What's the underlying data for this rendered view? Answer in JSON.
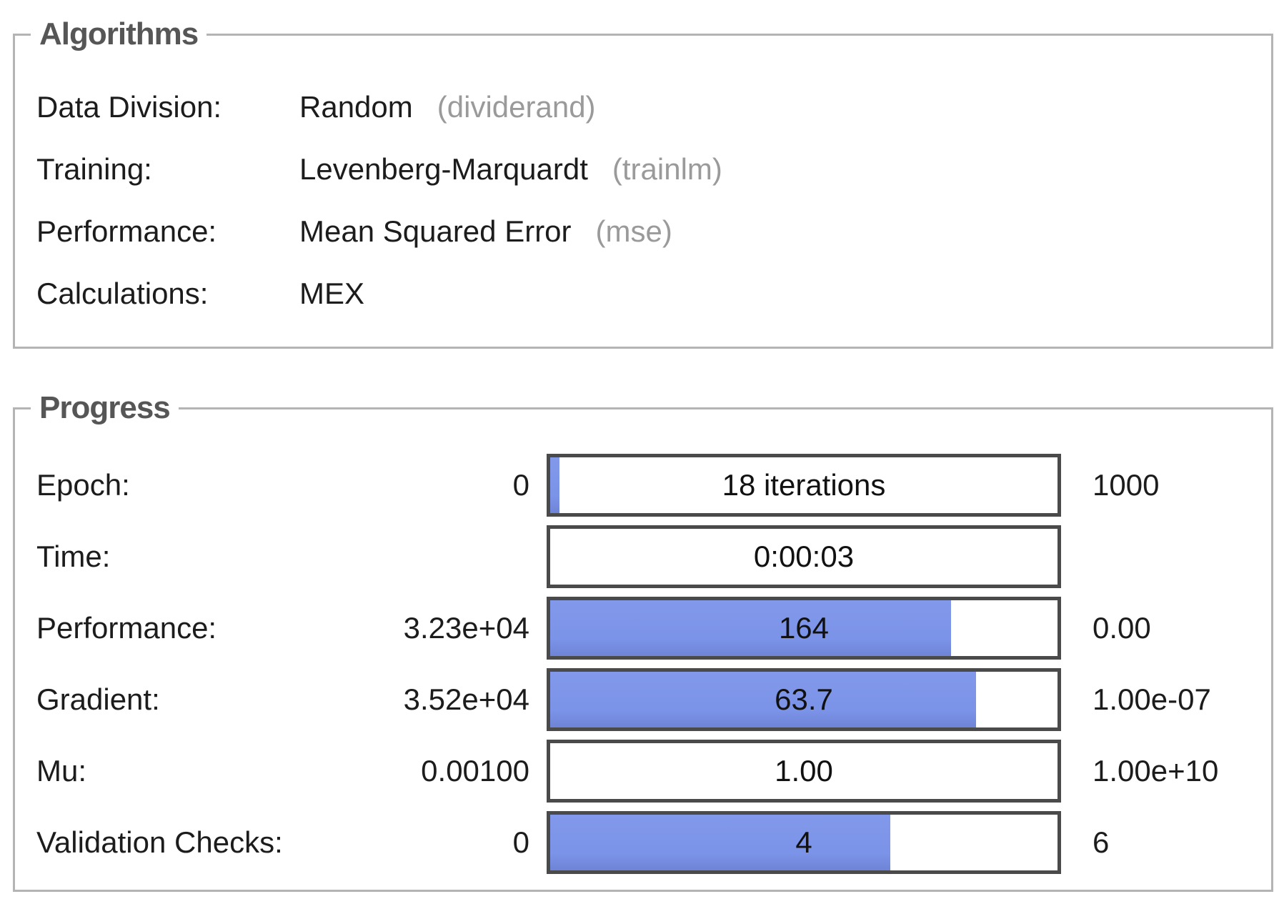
{
  "colors": {
    "fill_blue": "#7b93e8",
    "bar_border": "#4a4a4a",
    "box_border": "#b4b4b4",
    "title_text": "#565656",
    "paren_text": "#9a9a9a"
  },
  "algorithms": {
    "title": "Algorithms",
    "rows": [
      {
        "label": "Data Division:",
        "value": "Random",
        "paren": "(dividerand)"
      },
      {
        "label": "Training:",
        "value": "Levenberg-Marquardt",
        "paren": "(trainlm)"
      },
      {
        "label": "Performance:",
        "value": "Mean Squared Error",
        "paren": "(mse)"
      },
      {
        "label": "Calculations:",
        "value": "MEX",
        "paren": ""
      }
    ]
  },
  "progress": {
    "title": "Progress",
    "rows": [
      {
        "label": "Epoch:",
        "min": "0",
        "bar_text": "18 iterations",
        "max": "1000",
        "fill_pct": 1.8
      },
      {
        "label": "Time:",
        "min": "",
        "bar_text": "0:00:03",
        "max": "",
        "fill_pct": 0
      },
      {
        "label": "Performance:",
        "min": "3.23e+04",
        "bar_text": "164",
        "max": "0.00",
        "fill_pct": 79
      },
      {
        "label": "Gradient:",
        "min": "3.52e+04",
        "bar_text": "63.7",
        "max": "1.00e-07",
        "fill_pct": 84
      },
      {
        "label": "Mu:",
        "min": "0.00100",
        "bar_text": "1.00",
        "max": "1.00e+10",
        "fill_pct": 0
      },
      {
        "label": "Validation Checks:",
        "min": "0",
        "bar_text": "4",
        "max": "6",
        "fill_pct": 67
      }
    ]
  }
}
